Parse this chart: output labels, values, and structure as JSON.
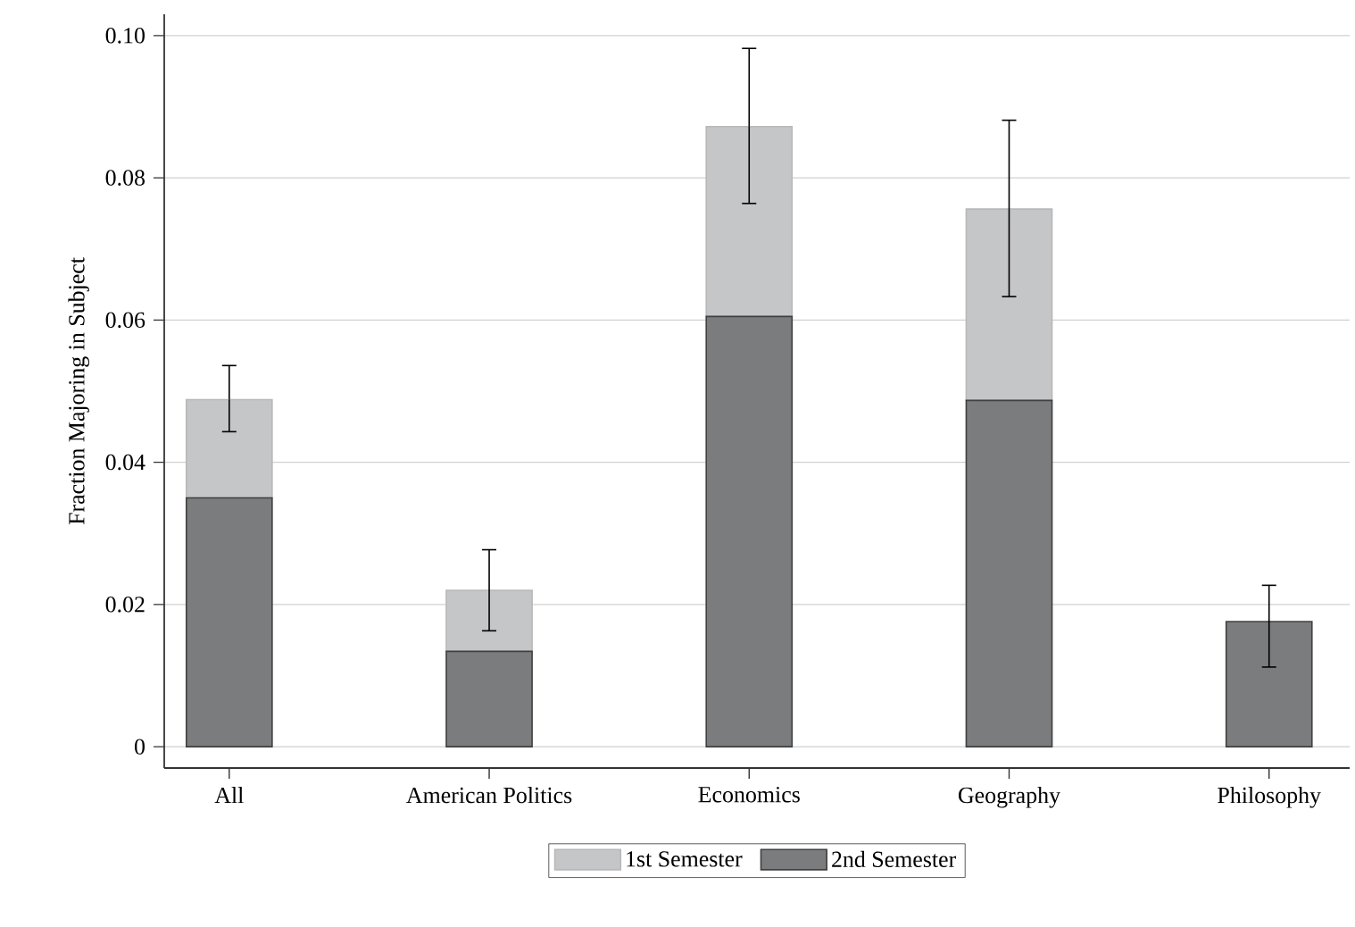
{
  "chart_data": {
    "type": "bar",
    "ylabel": "Fraction Majoring in Subject",
    "categories": [
      "All",
      "American Politics",
      "Economics",
      "Geography",
      "Philosophy"
    ],
    "stacked": true,
    "series": [
      {
        "name": "2nd Semester",
        "color": "#7b7c7e",
        "values": [
          0.035,
          0.0134,
          0.0605,
          0.0487,
          0.0176
        ]
      },
      {
        "name": "1st Semester",
        "color": "#c5c6c8",
        "values": [
          0.0138,
          0.0086,
          0.0267,
          0.0269,
          0
        ],
        "errors": [
          [
            0.0443,
            0.0536
          ],
          [
            0.0163,
            0.0277
          ],
          [
            0.0764,
            0.0982
          ],
          [
            0.0633,
            0.0881
          ],
          [
            0.0112,
            0.0227
          ]
        ]
      }
    ],
    "ylim": [
      -0.003,
      0.103
    ],
    "yticks": [
      0,
      0.02,
      0.04,
      0.06,
      0.08,
      {
        "value": 0.1,
        "label": "0.10"
      }
    ],
    "grid": "y",
    "legend": "bottom"
  }
}
